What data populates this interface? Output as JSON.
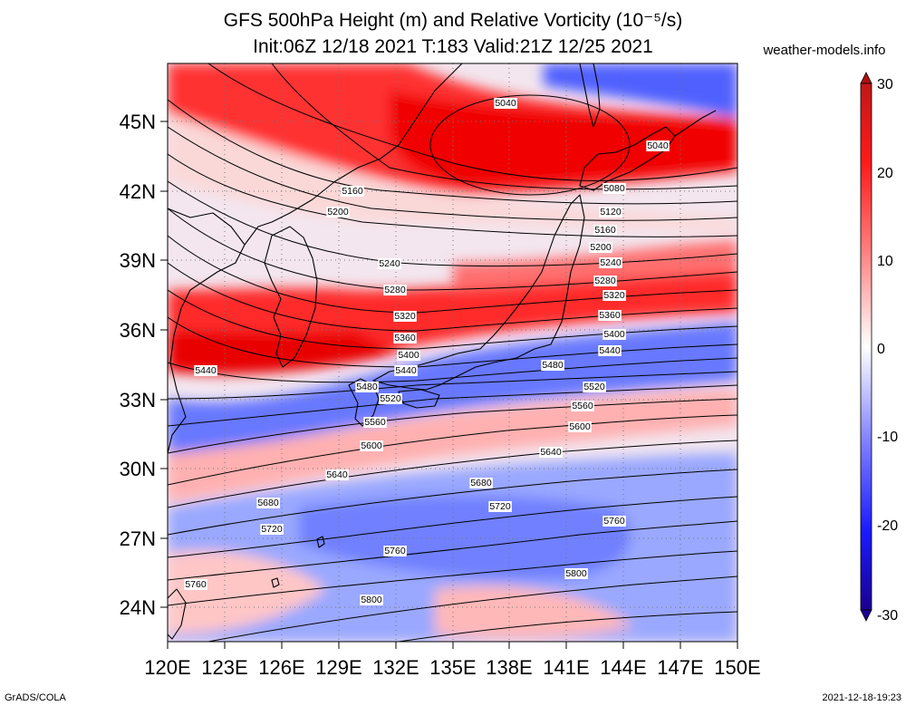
{
  "title": {
    "line1": "GFS 500hPa Height (m) and Relative Vorticity (10⁻⁵/s)",
    "line2": "Init:06Z 12/18 2021 T:183 Valid:21Z 12/25 2021"
  },
  "site": "weather-models.info",
  "footer_left": "GrADS/COLA",
  "footer_right": "2021-12-18-19:23",
  "map": {
    "lon_range": [
      120,
      150
    ],
    "lat_range": [
      22.5,
      47.5
    ],
    "lat_ticks": [
      "24N",
      "27N",
      "30N",
      "33N",
      "36N",
      "39N",
      "42N",
      "45N"
    ],
    "lon_ticks": [
      "120E",
      "123E",
      "126E",
      "129E",
      "132E",
      "135E",
      "138E",
      "141E",
      "144E",
      "147E",
      "150E"
    ]
  },
  "colorbar": {
    "ticks": [
      "30",
      "20",
      "10",
      "0",
      "-10",
      "-20",
      "-30"
    ],
    "colors": {
      "max": "#b01010",
      "pos": "#ff1a1a",
      "zero": "#ffffff",
      "neg": "#1a1aff",
      "min": "#1a0090"
    }
  },
  "contours": [
    {
      "label": "5040"
    },
    {
      "label": "5080"
    },
    {
      "label": "5120"
    },
    {
      "label": "5160"
    },
    {
      "label": "5200"
    },
    {
      "label": "5240"
    },
    {
      "label": "5280"
    },
    {
      "label": "5320"
    },
    {
      "label": "5360"
    },
    {
      "label": "5400"
    },
    {
      "label": "5440"
    },
    {
      "label": "5480"
    },
    {
      "label": "5520"
    },
    {
      "label": "5560"
    },
    {
      "label": "5600"
    },
    {
      "label": "5640"
    },
    {
      "label": "5680"
    },
    {
      "label": "5720"
    },
    {
      "label": "5760"
    },
    {
      "label": "5800"
    }
  ]
}
